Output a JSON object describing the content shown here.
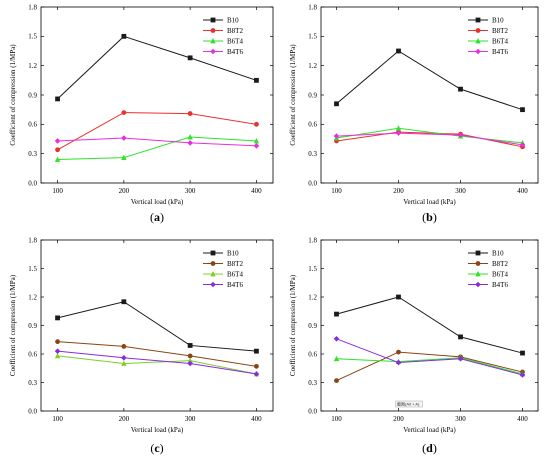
{
  "chart_data": [
    {
      "type": "line",
      "panel_label": "(a)",
      "xlabel": "Vertical load (kPa)",
      "ylabel": "Coefficient of compression (1/MPa)",
      "x": [
        100,
        200,
        300,
        400
      ],
      "xticks": [
        "100",
        "200",
        "300",
        "400"
      ],
      "ylim": [
        0,
        1.8
      ],
      "yticks": [
        "0.0",
        "0.3",
        "0.6",
        "0.9",
        "1.2",
        "1.5",
        "1.8"
      ],
      "legend_position": "top-right",
      "annotation": "",
      "series": [
        {
          "name": "B10",
          "values": [
            0.86,
            1.5,
            1.28,
            1.05
          ],
          "color": "#1a1a1a",
          "marker": "square"
        },
        {
          "name": "B8T2",
          "values": [
            0.34,
            0.72,
            0.71,
            0.6
          ],
          "color": "#e8322e",
          "marker": "circle"
        },
        {
          "name": "B6T4",
          "values": [
            0.24,
            0.26,
            0.47,
            0.43
          ],
          "color": "#2ee32a",
          "marker": "triangle"
        },
        {
          "name": "B4T6",
          "values": [
            0.43,
            0.46,
            0.41,
            0.38
          ],
          "color": "#e82ee0",
          "marker": "diamond"
        }
      ]
    },
    {
      "type": "line",
      "panel_label": "(b)",
      "xlabel": "Vertical load (kPa)",
      "ylabel": "Coefficient of compression (1/MPa)",
      "x": [
        100,
        200,
        300,
        400
      ],
      "xticks": [
        "100",
        "200",
        "300",
        "400"
      ],
      "ylim": [
        0,
        1.8
      ],
      "yticks": [
        "0.0",
        "0.3",
        "0.6",
        "0.9",
        "1.2",
        "1.5",
        "1.8"
      ],
      "legend_position": "top-right",
      "annotation": "",
      "series": [
        {
          "name": "B10",
          "values": [
            0.81,
            1.35,
            0.96,
            0.75
          ],
          "color": "#1a1a1a",
          "marker": "square"
        },
        {
          "name": "B8T2",
          "values": [
            0.43,
            0.52,
            0.5,
            0.37
          ],
          "color": "#e8322e",
          "marker": "circle"
        },
        {
          "name": "B6T4",
          "values": [
            0.46,
            0.56,
            0.48,
            0.41
          ],
          "color": "#2ee32a",
          "marker": "triangle"
        },
        {
          "name": "B4T6",
          "values": [
            0.48,
            0.51,
            0.49,
            0.39
          ],
          "color": "#e82ee0",
          "marker": "diamond"
        }
      ]
    },
    {
      "type": "line",
      "panel_label": "(c)",
      "xlabel": "Vertical load (kPa)",
      "ylabel": "Coefficient of compression (1/MPa)",
      "x": [
        100,
        200,
        300,
        400
      ],
      "xticks": [
        "100",
        "200",
        "300",
        "400"
      ],
      "ylim": [
        0,
        1.8
      ],
      "yticks": [
        "0.0",
        "0.3",
        "0.6",
        "0.9",
        "1.2",
        "1.5",
        "1.8"
      ],
      "legend_position": "top-right",
      "annotation": "",
      "series": [
        {
          "name": "B10",
          "values": [
            0.98,
            1.15,
            0.69,
            0.63
          ],
          "color": "#1a1a1a",
          "marker": "square"
        },
        {
          "name": "B8T2",
          "values": [
            0.73,
            0.68,
            0.58,
            0.47
          ],
          "color": "#8b4513",
          "marker": "circle"
        },
        {
          "name": "B6T4",
          "values": [
            0.58,
            0.5,
            0.53,
            0.39
          ],
          "color": "#7fcf2a",
          "marker": "triangle"
        },
        {
          "name": "B4T6",
          "values": [
            0.63,
            0.56,
            0.5,
            0.39
          ],
          "color": "#8a2be2",
          "marker": "diamond"
        }
      ]
    },
    {
      "type": "line",
      "panel_label": "(d)",
      "xlabel": "Vertical load (kPa)",
      "ylabel": "Coefficient of compression (1/MPa)",
      "x": [
        100,
        200,
        300,
        400
      ],
      "xticks": [
        "100",
        "200",
        "300",
        "400"
      ],
      "ylim": [
        0,
        1.8
      ],
      "yticks": [
        "0.0",
        "0.3",
        "0.6",
        "0.9",
        "1.2",
        "1.5",
        "1.8"
      ],
      "legend_position": "top-right",
      "annotation": "截图(Alt + A)",
      "series": [
        {
          "name": "B10",
          "values": [
            1.02,
            1.2,
            0.78,
            0.61
          ],
          "color": "#1a1a1a",
          "marker": "square"
        },
        {
          "name": "B8T2",
          "values": [
            0.32,
            0.62,
            0.57,
            0.41
          ],
          "color": "#8b4513",
          "marker": "circle"
        },
        {
          "name": "B6T4",
          "values": [
            0.55,
            0.52,
            0.56,
            0.39
          ],
          "color": "#2ee32a",
          "marker": "triangle"
        },
        {
          "name": "B4T6",
          "values": [
            0.76,
            0.51,
            0.55,
            0.38
          ],
          "color": "#8a2be2",
          "marker": "diamond"
        }
      ]
    }
  ]
}
